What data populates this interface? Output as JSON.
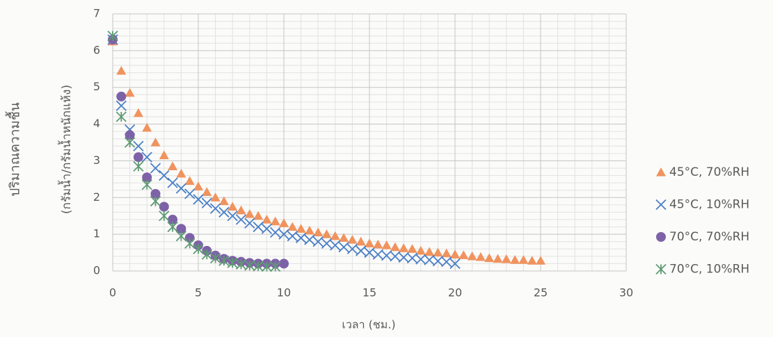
{
  "chart_data": {
    "type": "scatter",
    "x_label": "เวลา (ชม.)",
    "y_label": [
      "ปริมาณความชื้น",
      "(กรัมน้ำ/กรัมน้ำหนักแห้ง)"
    ],
    "xlim": [
      0,
      30
    ],
    "xticks": [
      0,
      5,
      10,
      15,
      20,
      25,
      30
    ],
    "ylim": [
      0,
      7
    ],
    "yticks": [
      0,
      1,
      2,
      3,
      4,
      5,
      6,
      7
    ],
    "grid": true,
    "legend": "right",
    "series": [
      {
        "name": "45°C, 70%RH",
        "color": "#f0935e",
        "marker": "triangle",
        "x": [
          0,
          0.5,
          1,
          1.5,
          2,
          2.5,
          3,
          3.5,
          4,
          4.5,
          5,
          5.5,
          6,
          6.5,
          7,
          7.5,
          8,
          8.5,
          9,
          9.5,
          10,
          10.5,
          11,
          11.5,
          12,
          12.5,
          13,
          13.5,
          14,
          14.5,
          15,
          15.5,
          16,
          16.5,
          17,
          17.5,
          18,
          18.5,
          19,
          19.5,
          20,
          20.5,
          21,
          21.5,
          22,
          22.5,
          23,
          23.5,
          24,
          24.5,
          25
        ],
        "values": [
          6.25,
          5.45,
          4.85,
          4.3,
          3.9,
          3.5,
          3.15,
          2.85,
          2.65,
          2.45,
          2.3,
          2.15,
          2.0,
          1.9,
          1.75,
          1.65,
          1.55,
          1.5,
          1.4,
          1.35,
          1.3,
          1.2,
          1.15,
          1.1,
          1.05,
          1.0,
          0.95,
          0.9,
          0.85,
          0.8,
          0.75,
          0.72,
          0.7,
          0.65,
          0.62,
          0.6,
          0.55,
          0.52,
          0.5,
          0.48,
          0.45,
          0.43,
          0.4,
          0.38,
          0.35,
          0.33,
          0.32,
          0.3,
          0.3,
          0.28,
          0.28
        ]
      },
      {
        "name": "45°C, 10%RH",
        "color": "#4a7fc6",
        "marker": "x",
        "x": [
          0,
          0.5,
          1,
          1.5,
          2,
          2.5,
          3,
          3.5,
          4,
          4.5,
          5,
          5.5,
          6,
          6.5,
          7,
          7.5,
          8,
          8.5,
          9,
          9.5,
          10,
          10.5,
          11,
          11.5,
          12,
          12.5,
          13,
          13.5,
          14,
          14.5,
          15,
          15.5,
          16,
          16.5,
          17,
          17.5,
          18,
          18.5,
          19,
          19.5,
          20
        ],
        "values": [
          6.3,
          4.5,
          3.85,
          3.4,
          3.1,
          2.8,
          2.6,
          2.4,
          2.25,
          2.1,
          1.95,
          1.85,
          1.7,
          1.6,
          1.5,
          1.4,
          1.3,
          1.2,
          1.15,
          1.05,
          1.0,
          0.95,
          0.9,
          0.85,
          0.8,
          0.75,
          0.7,
          0.65,
          0.6,
          0.55,
          0.5,
          0.45,
          0.42,
          0.4,
          0.37,
          0.35,
          0.32,
          0.3,
          0.27,
          0.25,
          0.2
        ]
      },
      {
        "name": "70°C, 70%RH",
        "color": "#7e62a8",
        "marker": "circle",
        "x": [
          0,
          0.5,
          1,
          1.5,
          2,
          2.5,
          3,
          3.5,
          4,
          4.5,
          5,
          5.5,
          6,
          6.5,
          7,
          7.5,
          8,
          8.5,
          9,
          9.5,
          10
        ],
        "values": [
          6.3,
          4.75,
          3.7,
          3.1,
          2.55,
          2.1,
          1.75,
          1.4,
          1.15,
          0.9,
          0.7,
          0.55,
          0.42,
          0.33,
          0.28,
          0.25,
          0.22,
          0.2,
          0.2,
          0.2,
          0.2
        ]
      },
      {
        "name": "70°C, 10%RH",
        "color": "#5f9a73",
        "marker": "asterisk",
        "x": [
          0,
          0.5,
          1,
          1.5,
          2,
          2.5,
          3,
          3.5,
          4,
          4.5,
          5,
          5.5,
          6,
          6.5,
          7,
          7.5,
          8,
          8.5,
          9,
          9.5
        ],
        "values": [
          6.4,
          4.2,
          3.5,
          2.85,
          2.35,
          1.9,
          1.5,
          1.2,
          0.95,
          0.75,
          0.6,
          0.45,
          0.35,
          0.28,
          0.22,
          0.18,
          0.15,
          0.13,
          0.12,
          0.12
        ]
      }
    ]
  }
}
